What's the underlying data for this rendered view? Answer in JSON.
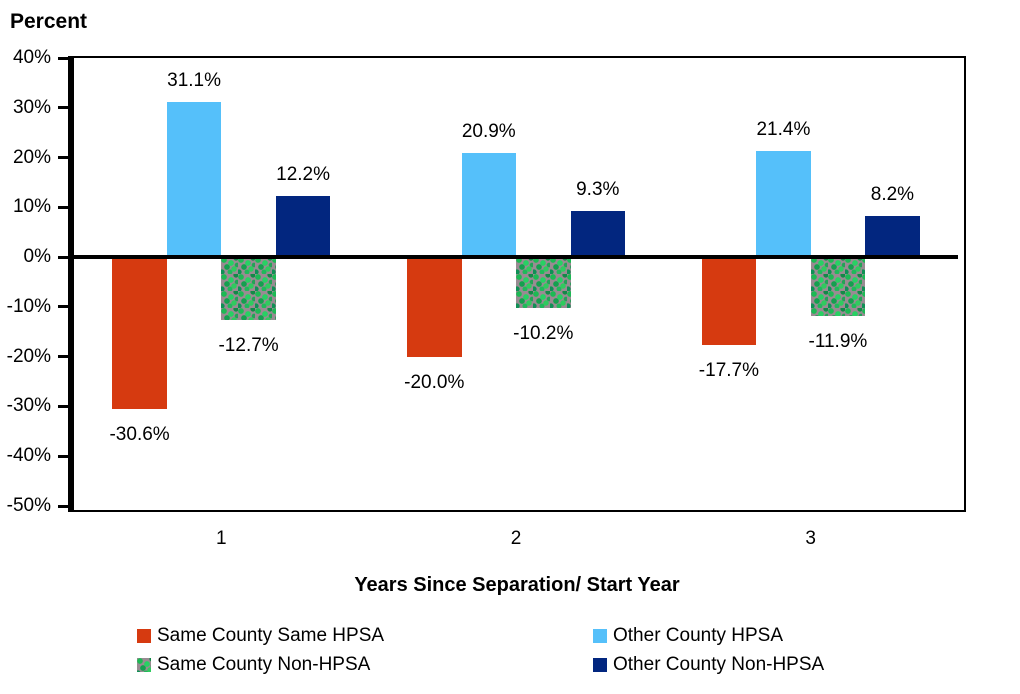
{
  "chart_data": {
    "type": "bar",
    "title": "Percent",
    "ylabel": "Percent",
    "xlabel": "Years Since Separation/ Start Year",
    "categories": [
      "1",
      "2",
      "3"
    ],
    "series": [
      {
        "name": "Same County Same HPSA",
        "color": "#d63a10",
        "values": [
          -30.6,
          -20.0,
          -17.7
        ],
        "value_labels": [
          "-30.6%",
          "-20.0%",
          "-17.7%"
        ]
      },
      {
        "name": "Other County HPSA",
        "color": "#55c0fa",
        "values": [
          31.1,
          20.9,
          21.4
        ],
        "value_labels": [
          "31.1%",
          "20.9%",
          "21.4%"
        ]
      },
      {
        "name": "Same County Non-HPSA",
        "color": "#998b92",
        "texture": "green-speckle",
        "values": [
          -12.7,
          -10.2,
          -11.9
        ],
        "value_labels": [
          "-12.7%",
          "-10.2%",
          "-11.9%"
        ]
      },
      {
        "name": "Other County Non-HPSA",
        "color": "#02267f",
        "values": [
          12.2,
          9.3,
          8.2
        ],
        "value_labels": [
          "12.2%",
          "9.3%",
          "8.2%"
        ]
      }
    ],
    "ylim": [
      -50,
      40
    ],
    "ytick_step": 10,
    "ytick_labels": [
      "40%",
      "30%",
      "20%",
      "10%",
      "0%",
      "-10%",
      "-20%",
      "-30%",
      "-40%",
      "-50%"
    ],
    "grid": false,
    "legend_position": "bottom",
    "axis_color": "#000000",
    "plot_background": "#ffffff"
  }
}
